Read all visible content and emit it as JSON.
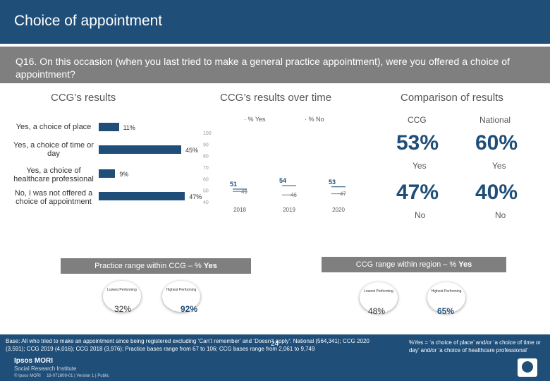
{
  "header": {
    "title": "Choice of appointment"
  },
  "question": {
    "text": "Q16. On this occasion (when you last tried to make a general practice appointment), were you offered a choice of appointment?"
  },
  "ccg_results": {
    "heading": "CCG’s results",
    "bars": [
      {
        "label": "Yes, a choice of place",
        "value": 11,
        "pct_label": "11%"
      },
      {
        "label": "Yes, a choice of time or day",
        "value": 45,
        "pct_label": "45%"
      },
      {
        "label": "Yes, a choice of healthcare professional",
        "value": 9,
        "pct_label": "9%"
      },
      {
        "label": "No, I was not offered a choice of appointment",
        "value": 47,
        "pct_label": "47%"
      }
    ]
  },
  "trend": {
    "heading": "CCG’s results over time",
    "legend_yes": "% Yes",
    "legend_no": "% No",
    "y_ticks": [
      "100",
      "90",
      "80",
      "70",
      "60",
      "50",
      "40"
    ],
    "x_labels": [
      "2018",
      "2019",
      "2020"
    ],
    "yes_values": [
      51,
      54,
      53
    ],
    "no_values": [
      49,
      46,
      47
    ],
    "yes_labels": [
      "51",
      "54",
      "53"
    ],
    "no_labels": [
      "49",
      "46",
      "47"
    ]
  },
  "comparison": {
    "heading": "Comparison of results",
    "ccg_label": "CCG",
    "national_label": "National",
    "ccg_yes": "53%",
    "national_yes": "60%",
    "yes_label": "Yes",
    "ccg_no": "47%",
    "national_no": "40%",
    "no_label": "No"
  },
  "practice_range": {
    "band_label": "Practice range within CCG – % ",
    "band_bold": "Yes",
    "lowest_label": "Lowest Performing",
    "highest_label": "Highest Performing",
    "lowest_value": "32%",
    "highest_value": "92%"
  },
  "ccg_range": {
    "band_label": "CCG range within region – % ",
    "band_bold": "Yes",
    "lowest_label": "Lowest Performing",
    "highest_label": "Highest Performing",
    "lowest_value": "48%",
    "highest_value": "65%"
  },
  "footer": {
    "base_text": "Base: All who tried to make an appointment since being registered excluding ‘Can’t remember’ and ‘Doesn’t apply’: National (564,341); CCG 2020 (3,591); CCG 2019 (4,016); CCG 2018 (3,976); Practice bases range from 67 to 106; CCG bases range from 2,061 to 9,749",
    "note_text": "%Yes = ‘a choice of place’ and/or ‘a choice of time or day’ and/or ‘a choice of healthcare professional’",
    "page_number": "24",
    "logo_line1": "Ipsos MORI",
    "logo_line2": "Social Research Institute",
    "copyright": "© Ipsos MORI     18-071809-01 | Version 1 | Public"
  },
  "colors": {
    "navy": "#1f4e79",
    "grey": "#7f7f7f"
  }
}
